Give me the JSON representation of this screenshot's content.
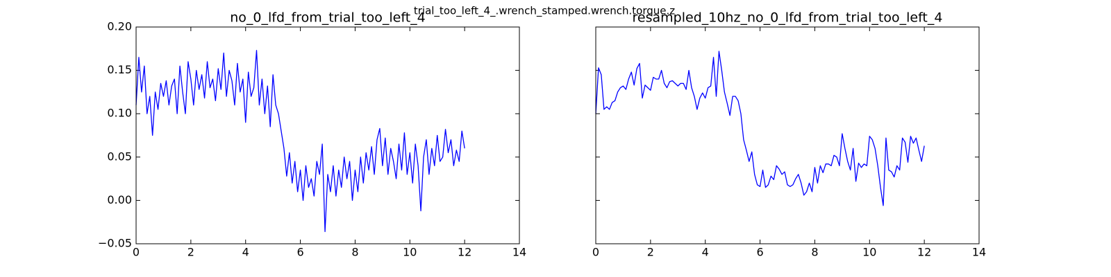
{
  "title": "trial_too_left_4_.wrench_stamped.wrench.torque.z",
  "chart_data": [
    {
      "type": "line",
      "title": "no_0_lfd_from_trial_too_left_4",
      "xlim": [
        0,
        14
      ],
      "xticks": [
        0,
        2,
        4,
        6,
        8,
        10,
        12,
        14
      ],
      "ylim": [
        -0.05,
        0.2
      ],
      "yticks": [
        {
          "value": -0.05,
          "label": "−0.05"
        },
        {
          "value": 0,
          "label": "0.00"
        },
        {
          "value": 0.05,
          "label": "0.05"
        },
        {
          "value": 0.1,
          "label": "0.10"
        },
        {
          "value": 0.15,
          "label": "0.15"
        },
        {
          "value": 0.2,
          "label": "0.20"
        }
      ],
      "show_ytick_labels": true,
      "color": "#0000ff",
      "x": [
        0,
        0.1,
        0.2,
        0.3,
        0.4,
        0.5,
        0.6,
        0.7,
        0.8,
        0.9,
        1,
        1.1,
        1.2,
        1.3,
        1.4,
        1.5,
        1.6,
        1.7,
        1.8,
        1.9,
        2,
        2.1,
        2.2,
        2.3,
        2.4,
        2.5,
        2.6,
        2.7,
        2.8,
        2.9,
        3,
        3.1,
        3.2,
        3.3,
        3.4,
        3.5,
        3.6,
        3.7,
        3.8,
        3.9,
        4,
        4.1,
        4.2,
        4.3,
        4.4,
        4.5,
        4.6,
        4.7,
        4.8,
        4.9,
        5,
        5.1,
        5.2,
        5.3,
        5.4,
        5.5,
        5.6,
        5.7,
        5.8,
        5.9,
        6,
        6.1,
        6.2,
        6.3,
        6.4,
        6.5,
        6.6,
        6.7,
        6.8,
        6.9,
        7,
        7.1,
        7.2,
        7.3,
        7.4,
        7.5,
        7.6,
        7.7,
        7.8,
        7.9,
        8,
        8.1,
        8.2,
        8.3,
        8.4,
        8.5,
        8.6,
        8.7,
        8.8,
        8.9,
        9,
        9.1,
        9.2,
        9.3,
        9.4,
        9.5,
        9.6,
        9.7,
        9.8,
        9.9,
        10,
        10.1,
        10.2,
        10.3,
        10.4,
        10.5,
        10.6,
        10.7,
        10.8,
        10.9,
        11,
        11.1,
        11.2,
        11.3,
        11.4,
        11.5,
        11.6,
        11.7,
        11.8,
        11.9,
        12
      ],
      "values": [
        0.11,
        0.165,
        0.125,
        0.155,
        0.1,
        0.12,
        0.075,
        0.125,
        0.105,
        0.135,
        0.12,
        0.138,
        0.11,
        0.132,
        0.14,
        0.1,
        0.155,
        0.125,
        0.1,
        0.16,
        0.14,
        0.11,
        0.15,
        0.128,
        0.145,
        0.118,
        0.16,
        0.13,
        0.14,
        0.115,
        0.152,
        0.128,
        0.17,
        0.12,
        0.15,
        0.138,
        0.11,
        0.158,
        0.125,
        0.14,
        0.09,
        0.148,
        0.12,
        0.13,
        0.173,
        0.11,
        0.14,
        0.1,
        0.132,
        0.085,
        0.145,
        0.11,
        0.1,
        0.08,
        0.06,
        0.028,
        0.055,
        0.02,
        0.045,
        0.01,
        0.035,
        0.0,
        0.04,
        0.015,
        0.025,
        0.005,
        0.045,
        0.03,
        0.065,
        -0.036,
        0.03,
        0.01,
        0.04,
        0.005,
        0.035,
        0.015,
        0.05,
        0.025,
        0.045,
        0.0,
        0.035,
        0.01,
        0.05,
        0.02,
        0.055,
        0.035,
        0.062,
        0.03,
        0.07,
        0.083,
        0.04,
        0.072,
        0.03,
        0.06,
        0.045,
        0.025,
        0.065,
        0.035,
        0.078,
        0.03,
        0.055,
        0.02,
        0.065,
        0.04,
        -0.012,
        0.05,
        0.07,
        0.03,
        0.06,
        0.04,
        0.075,
        0.045,
        0.05,
        0.082,
        0.055,
        0.07,
        0.04,
        0.058,
        0.045,
        0.08,
        0.06
      ]
    },
    {
      "type": "line",
      "title": "resampled_10hz_no_0_lfd_from_trial_too_left_4",
      "xlim": [
        0,
        14
      ],
      "xticks": [
        0,
        2,
        4,
        6,
        8,
        10,
        12,
        14
      ],
      "ylim": [
        -0.05,
        0.2
      ],
      "yticks": [
        -0.05,
        0,
        0.05,
        0.1,
        0.15,
        0.2
      ],
      "show_ytick_labels": false,
      "color": "#0000ff",
      "x": [
        0,
        0.1,
        0.2,
        0.3,
        0.4,
        0.5,
        0.6,
        0.7,
        0.8,
        0.9,
        1,
        1.1,
        1.2,
        1.3,
        1.4,
        1.5,
        1.6,
        1.7,
        1.8,
        1.9,
        2,
        2.1,
        2.2,
        2.3,
        2.4,
        2.5,
        2.6,
        2.7,
        2.8,
        2.9,
        3,
        3.1,
        3.2,
        3.3,
        3.4,
        3.5,
        3.6,
        3.7,
        3.8,
        3.9,
        4,
        4.1,
        4.2,
        4.3,
        4.4,
        4.5,
        4.6,
        4.7,
        4.8,
        4.9,
        5,
        5.1,
        5.2,
        5.3,
        5.4,
        5.5,
        5.6,
        5.7,
        5.8,
        5.9,
        6,
        6.1,
        6.2,
        6.3,
        6.4,
        6.5,
        6.6,
        6.7,
        6.8,
        6.9,
        7,
        7.1,
        7.2,
        7.3,
        7.4,
        7.5,
        7.6,
        7.7,
        7.8,
        7.9,
        8,
        8.1,
        8.2,
        8.3,
        8.4,
        8.5,
        8.6,
        8.7,
        8.8,
        8.9,
        9,
        9.1,
        9.2,
        9.3,
        9.4,
        9.5,
        9.6,
        9.7,
        9.8,
        9.9,
        10,
        10.1,
        10.2,
        10.3,
        10.4,
        10.5,
        10.6,
        10.7,
        10.8,
        10.9,
        11,
        11.1,
        11.2,
        11.3,
        11.4,
        11.5,
        11.6,
        11.7,
        11.8,
        11.9,
        12
      ],
      "values": [
        0.1,
        0.153,
        0.145,
        0.105,
        0.108,
        0.105,
        0.113,
        0.115,
        0.125,
        0.13,
        0.132,
        0.128,
        0.14,
        0.148,
        0.133,
        0.152,
        0.158,
        0.118,
        0.133,
        0.13,
        0.127,
        0.142,
        0.14,
        0.14,
        0.15,
        0.135,
        0.13,
        0.137,
        0.138,
        0.135,
        0.132,
        0.135,
        0.135,
        0.128,
        0.15,
        0.13,
        0.12,
        0.105,
        0.118,
        0.124,
        0.118,
        0.13,
        0.132,
        0.165,
        0.12,
        0.172,
        0.15,
        0.125,
        0.112,
        0.098,
        0.12,
        0.12,
        0.115,
        0.1,
        0.07,
        0.058,
        0.045,
        0.056,
        0.03,
        0.018,
        0.016,
        0.035,
        0.015,
        0.018,
        0.028,
        0.024,
        0.04,
        0.036,
        0.03,
        0.033,
        0.018,
        0.016,
        0.018,
        0.025,
        0.03,
        0.02,
        0.006,
        0.01,
        0.02,
        0.01,
        0.038,
        0.02,
        0.04,
        0.032,
        0.042,
        0.042,
        0.04,
        0.052,
        0.05,
        0.04,
        0.077,
        0.06,
        0.045,
        0.035,
        0.06,
        0.022,
        0.043,
        0.038,
        0.042,
        0.04,
        0.074,
        0.07,
        0.06,
        0.04,
        0.015,
        -0.006,
        0.072,
        0.035,
        0.033,
        0.027,
        0.04,
        0.035,
        0.072,
        0.067,
        0.044,
        0.074,
        0.066,
        0.072,
        0.058,
        0.045,
        0.063
      ]
    }
  ]
}
